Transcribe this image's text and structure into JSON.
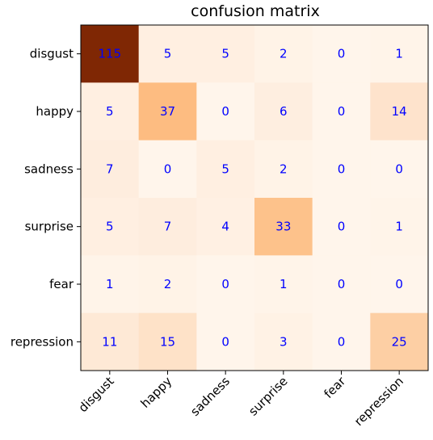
{
  "chart_data": {
    "type": "heatmap",
    "title": "confusion matrix",
    "xlabel": "",
    "ylabel": "",
    "row_labels": [
      "disgust",
      "happy",
      "sadness",
      "surprise",
      "fear",
      "repression"
    ],
    "col_labels": [
      "disgust",
      "happy",
      "sadness",
      "surprise",
      "fear",
      "repression"
    ],
    "values": [
      [
        115,
        5,
        5,
        2,
        0,
        1
      ],
      [
        5,
        37,
        0,
        6,
        0,
        14
      ],
      [
        7,
        0,
        5,
        2,
        0,
        0
      ],
      [
        5,
        7,
        4,
        33,
        0,
        1
      ],
      [
        1,
        2,
        0,
        1,
        0,
        0
      ],
      [
        11,
        15,
        0,
        3,
        0,
        25
      ]
    ],
    "value_range": [
      0,
      115
    ],
    "colormap": "Oranges-brown",
    "cell_text_color": "#0000ff",
    "x_tick_rotation": "45"
  }
}
